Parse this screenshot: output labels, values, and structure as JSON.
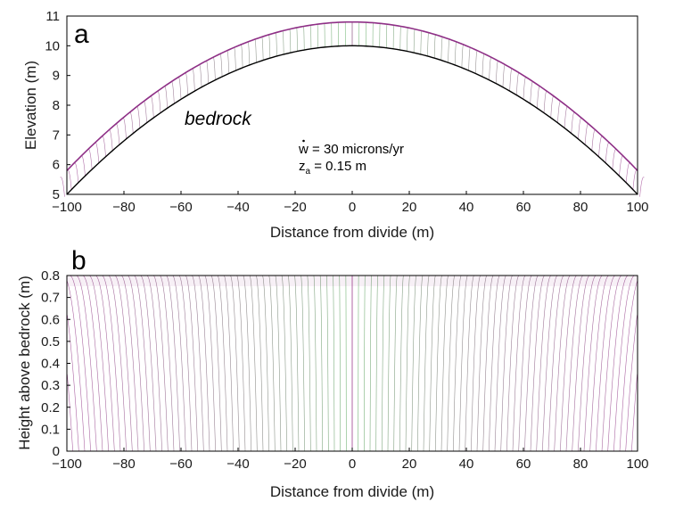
{
  "chart_data": [
    {
      "type": "line",
      "panel_label": "a",
      "xlabel": "Distance from divide (m)",
      "ylabel": "Elevation (m)",
      "xlim": [
        -100,
        100
      ],
      "ylim": [
        5,
        11
      ],
      "xticks": [
        -100,
        -80,
        -60,
        -40,
        -20,
        0,
        20,
        40,
        60,
        80,
        100
      ],
      "yticks": [
        5,
        6,
        7,
        8,
        9,
        10,
        11
      ],
      "grid": false,
      "bedrock_profile": {
        "x": [
          -100,
          -50,
          0,
          50,
          100
        ],
        "y": [
          5.0,
          8.75,
          10.0,
          8.75,
          5.0
        ]
      },
      "soil_surface_profile": {
        "x": [
          -100,
          -50,
          0,
          50,
          100
        ],
        "y": [
          5.8,
          9.55,
          10.8,
          9.55,
          5.8
        ]
      },
      "trajectory_color_ramp": [
        "#4caf50",
        "#9b3d8f"
      ],
      "annotations": {
        "bedrock": "bedrock",
        "w_prefix": "w",
        "w_value": " = 30 microns/yr",
        "z_prefix": "z",
        "z_sub": "a",
        "z_value": " = 0.15 m"
      }
    },
    {
      "type": "line",
      "panel_label": "b",
      "xlabel": "Distance from divide (m)",
      "ylabel": "Height above bedrock (m)",
      "xlim": [
        -100,
        100
      ],
      "ylim": [
        0,
        0.8
      ],
      "xticks": [
        -100,
        -80,
        -60,
        -40,
        -20,
        0,
        20,
        40,
        60,
        80,
        100
      ],
      "yticks": [
        0,
        0.1,
        0.2,
        0.3,
        0.4,
        0.5,
        0.6,
        0.7,
        0.8
      ],
      "grid": false,
      "soil_thickness_m": 0.8,
      "trajectory_color_ramp": [
        "#4caf50",
        "#9b3d8f"
      ]
    }
  ]
}
